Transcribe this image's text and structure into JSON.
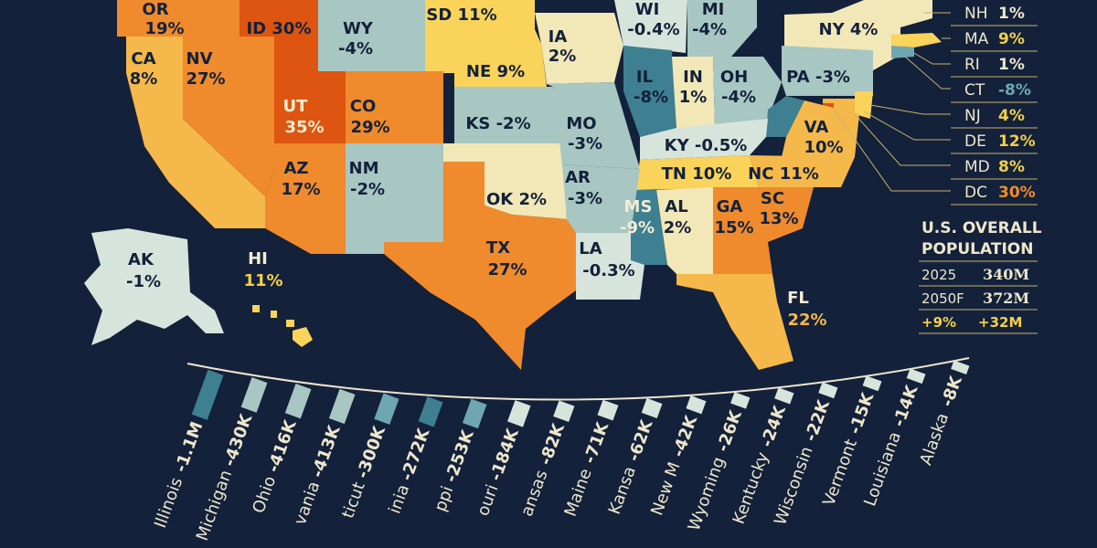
{
  "colors": {
    "background": "#13213a",
    "dark_orange": "#dd5510",
    "orange": "#ef8a2d",
    "light_orange": "#f5b84a",
    "yellow": "#f9d35a",
    "cream": "#f2e7b6",
    "pale_blue": "#d6e4dc",
    "teal_light": "#a8c6c2",
    "teal": "#6ea7b2",
    "teal_dark": "#3e7f92",
    "text_light": "#eee6cc",
    "text_gold": "#f3cf4a",
    "text_orange": "#f08b2a",
    "text_teal": "#6ea7b2"
  },
  "states": {
    "OR": {
      "abbr": "OR",
      "value": "19%"
    },
    "ID": {
      "abbr": "ID",
      "value": "30%"
    },
    "WY": {
      "abbr": "WY",
      "value": "-4%"
    },
    "SD": {
      "abbr": "SD",
      "value": "11%"
    },
    "WI": {
      "abbr": "WI",
      "value": "-0.4%"
    },
    "MI": {
      "abbr": "MI",
      "value": "-4%"
    },
    "NY": {
      "abbr": "NY",
      "value": "4%"
    },
    "IA": {
      "abbr": "IA",
      "value": "2%"
    },
    "CA": {
      "abbr": "CA",
      "value": "8%"
    },
    "NV": {
      "abbr": "NV",
      "value": "27%"
    },
    "NE": {
      "abbr": "NE",
      "value": "9%"
    },
    "IL": {
      "abbr": "IL",
      "value": "-8%"
    },
    "IN": {
      "abbr": "IN",
      "value": "1%"
    },
    "OH": {
      "abbr": "OH",
      "value": "-4%"
    },
    "PA": {
      "abbr": "PA",
      "value": "-3%"
    },
    "UT": {
      "abbr": "UT",
      "value": "35%"
    },
    "CO": {
      "abbr": "CO",
      "value": "29%"
    },
    "KS": {
      "abbr": "KS",
      "value": "-2%"
    },
    "MO": {
      "abbr": "MO",
      "value": "-3%"
    },
    "KY": {
      "abbr": "KY",
      "value": "-0.5%"
    },
    "VA": {
      "abbr": "VA",
      "value": "10%"
    },
    "AZ": {
      "abbr": "AZ",
      "value": "17%"
    },
    "NM": {
      "abbr": "NM",
      "value": "-2%"
    },
    "TN": {
      "abbr": "TN",
      "value": "10%"
    },
    "NC": {
      "abbr": "NC",
      "value": "11%"
    },
    "OK": {
      "abbr": "OK",
      "value": "2%"
    },
    "AR": {
      "abbr": "AR",
      "value": "-3%"
    },
    "SC": {
      "abbr": "SC",
      "value": "13%"
    },
    "MS": {
      "abbr": "MS",
      "value": "-9%"
    },
    "AL": {
      "abbr": "AL",
      "value": "2%"
    },
    "GA": {
      "abbr": "GA",
      "value": "15%"
    },
    "AK": {
      "abbr": "AK",
      "value": "-1%"
    },
    "HI": {
      "abbr": "HI",
      "value": "11%"
    },
    "TX": {
      "abbr": "TX",
      "value": "27%"
    },
    "LA": {
      "abbr": "LA",
      "value": "-0.3%"
    },
    "FL": {
      "abbr": "FL",
      "value": "22%"
    }
  },
  "sidebar": [
    {
      "abbr": "NH",
      "value": "1%"
    },
    {
      "abbr": "MA",
      "value": "9%"
    },
    {
      "abbr": "RI",
      "value": "1%"
    },
    {
      "abbr": "CT",
      "value": "-8%"
    },
    {
      "abbr": "NJ",
      "value": "4%"
    },
    {
      "abbr": "DE",
      "value": "12%"
    },
    {
      "abbr": "MD",
      "value": "8%"
    },
    {
      "abbr": "DC",
      "value": "30%"
    }
  ],
  "overall": {
    "title_line1": "U.S. OVERALL",
    "title_line2": "POPULATION",
    "row1_label": "2025",
    "row1_value": "340M",
    "row2_label": "2050F",
    "row2_value": "372M",
    "change_pct": "+9%",
    "change_abs": "+32M"
  },
  "chart_data": {
    "type": "bar",
    "categories": [
      "Illinois",
      "Michigan",
      "Ohio",
      "vania",
      "ticut",
      "inia",
      "ppi",
      "ouri",
      "ansas",
      "Maine",
      "Kansa",
      "New M",
      "Wyoming",
      "Kentucky",
      "Wisconsin",
      "Vermont",
      "Louisiana",
      "Alaska"
    ],
    "labels": [
      "-1.1M",
      "-430K",
      "-416K",
      "-413K",
      "-300K",
      "-272K",
      "-253K",
      "-184K",
      "-82K",
      "-71K",
      "-62K",
      "-42K",
      "-26K",
      "-24K",
      "-22K",
      "-15K",
      "-14K",
      "-8K"
    ],
    "values": [
      -1100,
      -430,
      -416,
      -413,
      -300,
      -272,
      -253,
      -184,
      -82,
      -71,
      -62,
      -42,
      -26,
      -24,
      -22,
      -15,
      -14,
      -8
    ],
    "unit": "thousand people"
  }
}
